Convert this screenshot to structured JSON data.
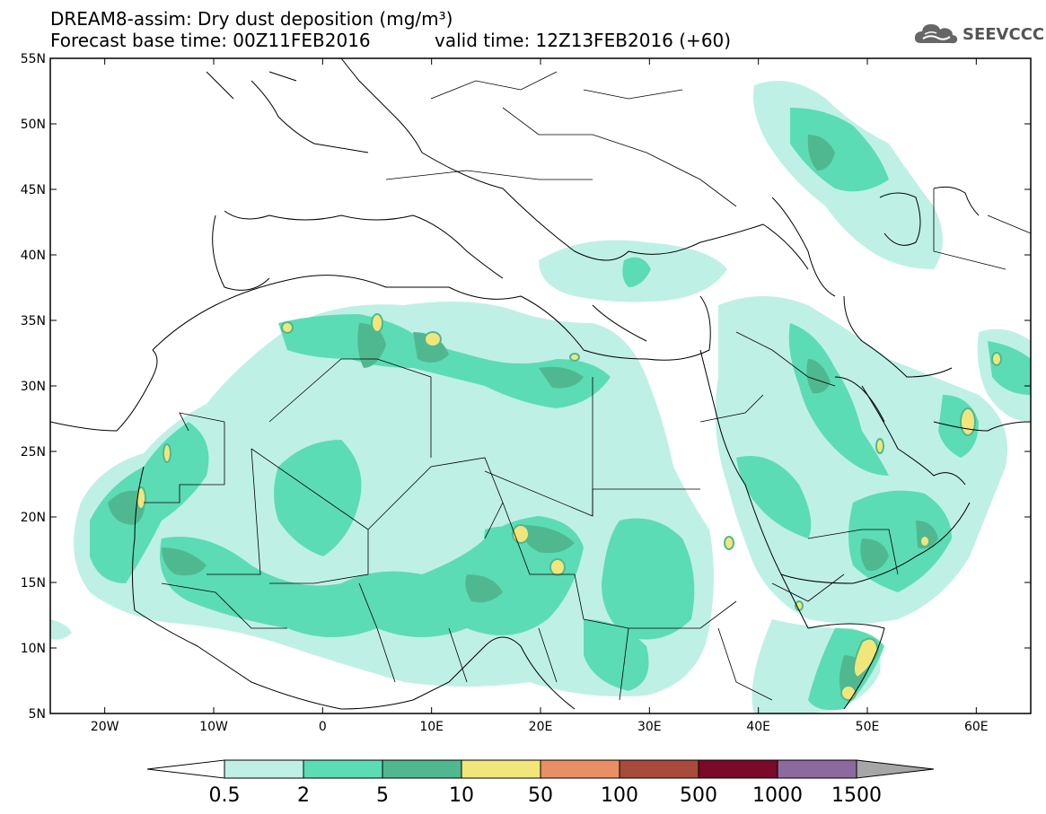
{
  "title": {
    "line1": "DREAM8-assim: Dry dust deposition (mg/m³)",
    "line2": "Forecast base time: 00Z11FEB2016",
    "valid": "valid time: 12Z13FEB2016 (+60)"
  },
  "logo": {
    "text": "SEEVCCC",
    "icon": "cloud-icon"
  },
  "map": {
    "lon_range": [
      -25,
      65
    ],
    "lat_range": [
      5,
      55
    ],
    "lat_labels": [
      "55N",
      "50N",
      "45N",
      "40N",
      "35N",
      "30N",
      "25N",
      "20N",
      "15N",
      "10N",
      "5N"
    ],
    "lon_labels": [
      "20W",
      "10W",
      "0",
      "10E",
      "20E",
      "30E",
      "40E",
      "50E",
      "60E"
    ]
  },
  "legend": {
    "labels": [
      "0.5",
      "2",
      "5",
      "10",
      "50",
      "100",
      "500",
      "1000",
      "1500"
    ],
    "colors": [
      "#bff0e6",
      "#5cdcb4",
      "#50b890",
      "#f2e67a",
      "#e89064",
      "#a84a3c",
      "#7a0a2a",
      "#8c6aa0",
      "#a6a6a6"
    ],
    "low_end_color": "#ffffff"
  }
}
